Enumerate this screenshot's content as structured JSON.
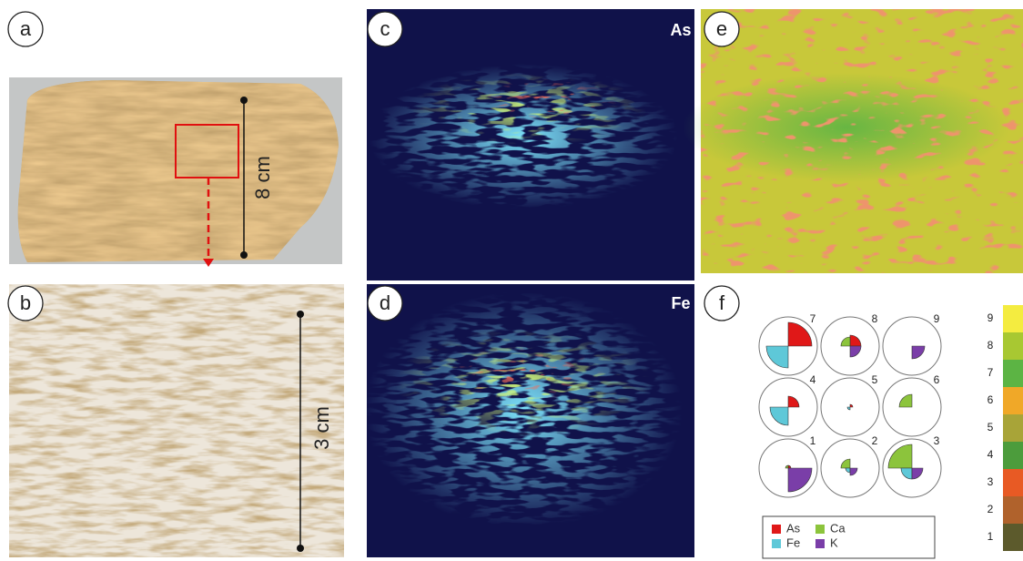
{
  "panels": [
    {
      "label": "a",
      "scale": "8 cm"
    },
    {
      "label": "b",
      "scale": "3 cm"
    },
    {
      "label": "c",
      "element": "As"
    },
    {
      "label": "d",
      "element": "Fe"
    },
    {
      "label": "e"
    },
    {
      "label": "f"
    }
  ],
  "pies": [
    7,
    8,
    9,
    4,
    5,
    6,
    1,
    2,
    3
  ],
  "legend": [
    {
      "name": "As",
      "color": "#e01818"
    },
    {
      "name": "Fe",
      "color": "#5ec8d8"
    },
    {
      "name": "Ca",
      "color": "#8cc43c"
    },
    {
      "name": "K",
      "color": "#7a3ea8"
    }
  ],
  "colorbar": [
    {
      "label": 9,
      "color": "#f4ec40"
    },
    {
      "label": 8,
      "color": "#a8c832"
    },
    {
      "label": 7,
      "color": "#5cb444"
    },
    {
      "label": 6,
      "color": "#f0a828"
    },
    {
      "label": 5,
      "color": "#a8a438"
    },
    {
      "label": 4,
      "color": "#4c9c3c"
    },
    {
      "label": 3,
      "color": "#e85a24"
    },
    {
      "label": 2,
      "color": "#b0622c"
    },
    {
      "label": 1,
      "color": "#5c5a2c"
    }
  ]
}
